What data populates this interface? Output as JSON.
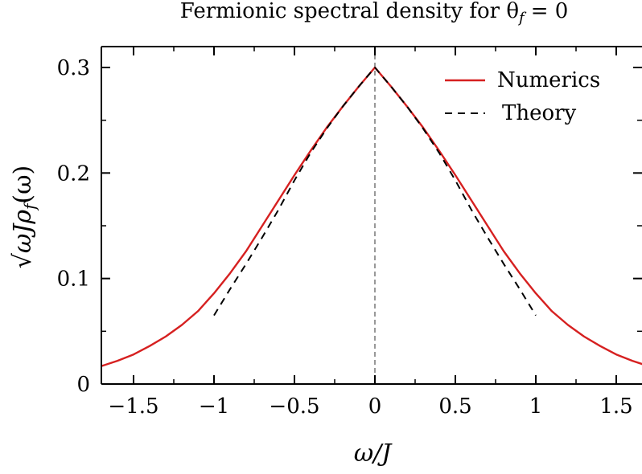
{
  "chart_data": {
    "type": "line",
    "title": "Fermionic spectral density for θ",
    "title_subscript": "f",
    "title_tail": "= 0",
    "xlabel": "ω/J",
    "ylabel_parts": {
      "root": "√ω",
      "rest": "Jρ",
      "sub": "f",
      "tail": "(ω)"
    },
    "xlim": [
      -1.7,
      1.7
    ],
    "ylim": [
      0,
      0.3
    ],
    "xticks": [
      -1.5,
      -1,
      -0.5,
      0,
      0.5,
      1,
      1.5
    ],
    "xtick_labels": [
      "−1.5",
      "−1",
      "−0.5",
      "0",
      "0.5",
      "1",
      "1.5"
    ],
    "yticks": [
      0,
      0.1,
      0.2,
      0.3
    ],
    "ytick_labels": [
      "0",
      "0.1",
      "0.2",
      "0.3"
    ],
    "grid": false,
    "legend_position": "top-right",
    "vertical_reference_line_x": 0,
    "series": [
      {
        "name": "Numerics",
        "style": "solid",
        "color": "#d62020",
        "x": [
          -1.7,
          -1.6,
          -1.5,
          -1.4,
          -1.3,
          -1.2,
          -1.1,
          -1.0,
          -0.9,
          -0.8,
          -0.7,
          -0.6,
          -0.5,
          -0.4,
          -0.3,
          -0.2,
          -0.1,
          0,
          0.1,
          0.2,
          0.3,
          0.4,
          0.5,
          0.6,
          0.7,
          0.8,
          0.9,
          1.0,
          1.1,
          1.2,
          1.3,
          1.4,
          1.5,
          1.6,
          1.7
        ],
        "y": [
          0.017,
          0.022,
          0.028,
          0.036,
          0.045,
          0.056,
          0.069,
          0.086,
          0.105,
          0.126,
          0.15,
          0.174,
          0.198,
          0.221,
          0.243,
          0.263,
          0.282,
          0.3,
          0.282,
          0.263,
          0.243,
          0.221,
          0.198,
          0.174,
          0.15,
          0.126,
          0.105,
          0.086,
          0.069,
          0.056,
          0.045,
          0.036,
          0.028,
          0.022,
          0.017
        ]
      },
      {
        "name": "Theory",
        "style": "dashed",
        "color": "#000000",
        "x": [
          -1.0,
          -0.9,
          -0.8,
          -0.7,
          -0.6,
          -0.5,
          -0.4,
          -0.3,
          -0.2,
          -0.1,
          0,
          0.1,
          0.2,
          0.3,
          0.4,
          0.5,
          0.6,
          0.7,
          0.8,
          0.9,
          1.0
        ],
        "y": [
          0.065,
          0.09,
          0.114,
          0.139,
          0.165,
          0.193,
          0.219,
          0.242,
          0.263,
          0.282,
          0.3,
          0.282,
          0.263,
          0.242,
          0.219,
          0.193,
          0.165,
          0.139,
          0.114,
          0.09,
          0.065
        ]
      }
    ]
  }
}
